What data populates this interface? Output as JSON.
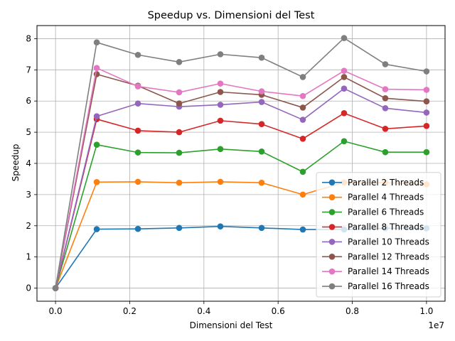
{
  "chart_data": {
    "type": "line",
    "title": "Speedup vs. Dimensioni del Test",
    "xlabel": "Dimensioni del Test",
    "ylabel": "Speedup",
    "x_offset_label": "1e7",
    "x_ticks": [
      "0.0",
      "0.2",
      "0.4",
      "0.6",
      "0.8",
      "1.0"
    ],
    "y_ticks": [
      "0",
      "1",
      "2",
      "3",
      "4",
      "5",
      "6",
      "7",
      "8"
    ],
    "xlim": [
      -0.05,
      1.05
    ],
    "ylim": [
      -0.42,
      8.42
    ],
    "grid": true,
    "legend_position": "lower-right",
    "x": [
      0.0,
      0.1111,
      0.2222,
      0.3333,
      0.4444,
      0.5556,
      0.6667,
      0.7778,
      0.8889,
      1.0
    ],
    "series": [
      {
        "name": "Parallel 2 Threads",
        "color": "#1f77b4",
        "values": [
          0,
          1.89,
          1.9,
          1.93,
          1.98,
          1.93,
          1.88,
          1.88,
          1.92,
          1.92
        ]
      },
      {
        "name": "Parallel 4 Threads",
        "color": "#ff7f0e",
        "values": [
          0,
          3.4,
          3.41,
          3.38,
          3.41,
          3.38,
          3.0,
          3.39,
          3.38,
          3.33
        ]
      },
      {
        "name": "Parallel 6 Threads",
        "color": "#2ca02c",
        "values": [
          0,
          4.6,
          4.35,
          4.34,
          4.46,
          4.38,
          3.73,
          4.71,
          4.36,
          4.36
        ]
      },
      {
        "name": "Parallel 8 Threads",
        "color": "#d62728",
        "values": [
          0,
          5.42,
          5.05,
          5.0,
          5.37,
          5.26,
          4.79,
          5.61,
          5.11,
          5.2
        ]
      },
      {
        "name": "Parallel 10 Threads",
        "color": "#9467bd",
        "values": [
          0,
          5.51,
          5.92,
          5.82,
          5.88,
          5.97,
          5.4,
          6.4,
          5.77,
          5.63
        ]
      },
      {
        "name": "Parallel 12 Threads",
        "color": "#8c564b",
        "values": [
          0,
          6.86,
          6.49,
          5.92,
          6.29,
          6.2,
          5.79,
          6.77,
          6.09,
          5.99
        ]
      },
      {
        "name": "Parallel 14 Threads",
        "color": "#e377c2",
        "values": [
          0,
          7.06,
          6.47,
          6.28,
          6.56,
          6.31,
          6.16,
          6.97,
          6.38,
          6.36
        ]
      },
      {
        "name": "Parallel 16 Threads",
        "color": "#7f7f7f",
        "values": [
          0,
          7.88,
          7.48,
          7.25,
          7.5,
          7.39,
          6.77,
          8.02,
          7.18,
          6.95
        ]
      }
    ]
  }
}
